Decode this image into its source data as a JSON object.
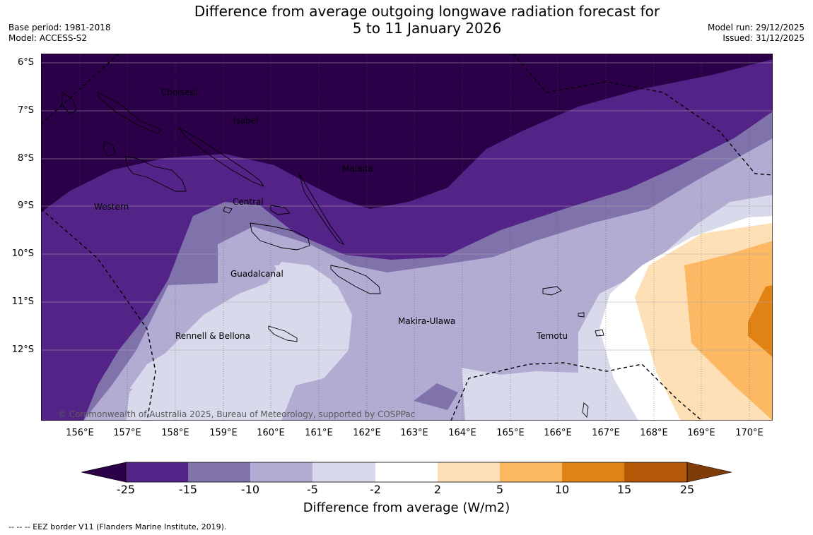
{
  "header": {
    "title_line1": "Difference from average outgoing longwave radiation forecast for",
    "title_line2": "5 to 11 January 2026",
    "base_period": "Base period: 1981-2018",
    "model": "Model: ACCESS-S2",
    "model_run": "Model run: 29/12/2025",
    "issued": "Issued: 31/12/2025"
  },
  "map": {
    "lat_labels": [
      "6°S",
      "7°S",
      "8°S",
      "9°S",
      "10°S",
      "11°S",
      "12°S"
    ],
    "lon_labels": [
      "156°E",
      "157°E",
      "158°E",
      "159°E",
      "160°E",
      "161°E",
      "162°E",
      "163°E",
      "164°E",
      "165°E",
      "166°E",
      "167°E",
      "168°E",
      "169°E",
      "170°E"
    ],
    "regions": {
      "choiseul": "Choiseul",
      "isabel": "Isabel",
      "malaita": "Malaita",
      "western": "Western",
      "central": "Central",
      "guadalcanal": "Guadalcanal",
      "makira": "Makira-Ulawa",
      "rennell": "Rennell & Bellona",
      "temotu": "Temotu"
    },
    "copyright": "© Commonwealth of Australia 2025, Bureau of Meteorology, supported by COSPPac",
    "colors": {
      "lt_-25": "#2b0049",
      "-25_-15": "#542388",
      "-15_-10": "#8073ac",
      "-10_-5": "#b2abd2",
      "-5_-2": "#d8daeb",
      "-2_2": "#ffffff",
      "2_5": "#fee0b6",
      "5_10": "#fdb863",
      "10_15": "#e08214",
      "15_25": "#b35806",
      "gt_25": "#7f3b08"
    }
  },
  "colorbar": {
    "ticks": [
      "-25",
      "-15",
      "-10",
      "-5",
      "-2",
      "2",
      "5",
      "10",
      "15",
      "25"
    ],
    "title": "Difference from average (W/m2)"
  },
  "footnote": "--  --  -- EEZ border V11 (Flanders Marine Institute, 2019)."
}
